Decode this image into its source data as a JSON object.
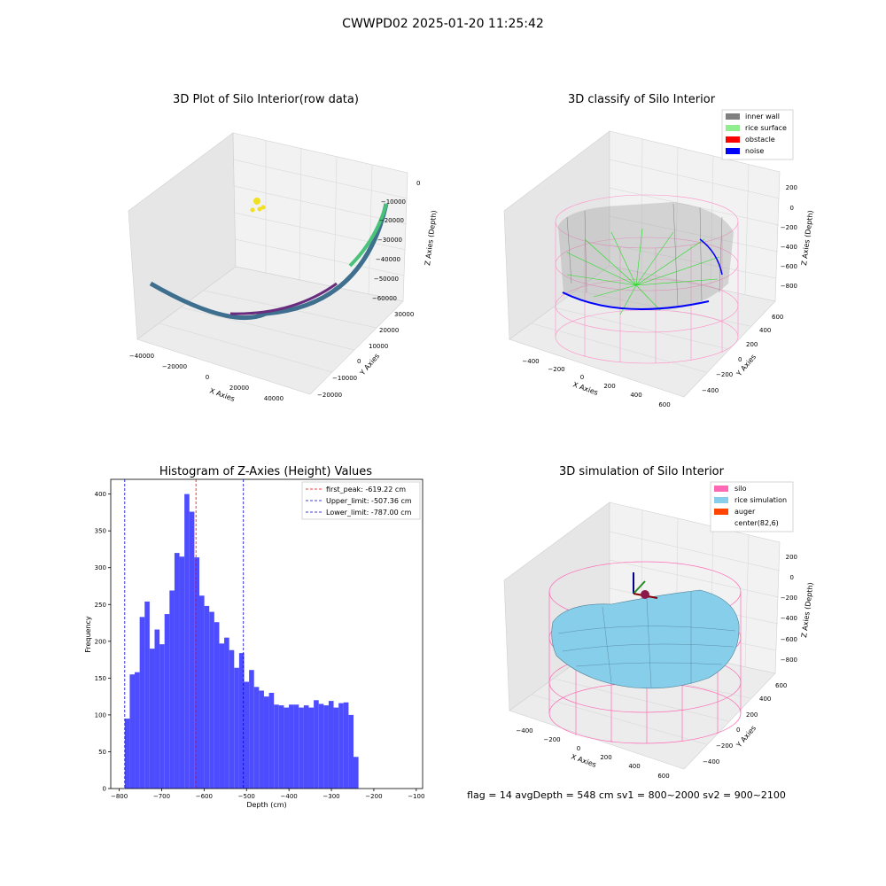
{
  "figure": {
    "title": "CWWPD02 2025-01-20 11:25:42",
    "footer": "flag = 14   avgDepth = 548 cm  sv1 = 800~2000  sv2 = 900~2100"
  },
  "colors": {
    "histogram_bar": "#4d4dff",
    "first_peak_line": "#ff0000",
    "limit_line": "#0000cc",
    "inner_wall": "#808080",
    "rice_surface": "#90ee90",
    "obstacle": "#ff0000",
    "noise": "#0000ff",
    "silo": "#ff69b4",
    "rice_simulation": "#87ceeb",
    "auger": "#ff4500"
  },
  "chart_data": [
    {
      "type": "scatter",
      "title": "3D Plot of Silo Interior(row data)",
      "xlabel": "X Axies",
      "ylabel": "Y Axies",
      "zlabel": "Z Axies (Depth)",
      "x_ticks": [
        "−40000",
        "−20000",
        "0",
        "20000",
        "40000"
      ],
      "y_ticks": [
        "−20000",
        "−10000",
        "0",
        "10000",
        "20000",
        "30000"
      ],
      "z_ticks": [
        "−60000",
        "−50000",
        "−40000",
        "−30000",
        "−20000",
        "−10000",
        "0"
      ]
    },
    {
      "type": "scatter",
      "title": "3D classify of Silo Interior",
      "xlabel": "X Axies",
      "ylabel": "Y Axies",
      "zlabel": "Z Axies (Depth)",
      "x_ticks": [
        "−400",
        "−200",
        "0",
        "200",
        "400",
        "600"
      ],
      "y_ticks": [
        "−400",
        "−200",
        "0",
        "200",
        "400",
        "600"
      ],
      "z_ticks": [
        "−800",
        "−600",
        "−400",
        "−200",
        "0",
        "200"
      ],
      "legend": [
        "inner wall",
        "rice surface",
        "obstacle",
        "noise"
      ],
      "legend_position": "top-right"
    },
    {
      "type": "bar",
      "title": "Histogram of Z-Axies (Height) Values",
      "xlabel": "Depth (cm)",
      "ylabel": "Frequency",
      "xlim": [
        -820,
        -85
      ],
      "ylim": [
        0,
        420
      ],
      "x_ticks": [
        -800,
        -700,
        -600,
        -500,
        -400,
        -300,
        -200,
        -100
      ],
      "x_tick_labels": [
        "−800",
        "−700",
        "−600",
        "−500",
        "−400",
        "−300",
        "−200",
        "−100"
      ],
      "y_ticks": [
        0,
        50,
        100,
        150,
        200,
        250,
        300,
        350,
        400
      ],
      "bin_start": -787,
      "bin_width": 11.72,
      "values": [
        95,
        155,
        158,
        233,
        254,
        190,
        216,
        196,
        237,
        269,
        320,
        315,
        400,
        376,
        314,
        262,
        248,
        240,
        226,
        197,
        205,
        188,
        164,
        184,
        145,
        161,
        138,
        133,
        125,
        130,
        114,
        113,
        110,
        114,
        114,
        110,
        113,
        110,
        120,
        115,
        113,
        119,
        110,
        116,
        117,
        100,
        43
      ],
      "vlines": [
        {
          "label": "first_peak: -619.22 cm",
          "x": -619.22,
          "color": "#ff0000"
        },
        {
          "label": "Upper_limit: -507.36 cm",
          "x": -507.36,
          "color": "#0000cc"
        },
        {
          "label": "Lower_limit: -787.00 cm",
          "x": -787.0,
          "color": "#0000cc"
        }
      ],
      "legend_position": "top-right"
    },
    {
      "type": "scatter",
      "title": "3D simulation of Silo Interior",
      "xlabel": "X Axies",
      "ylabel": "Y Axies",
      "zlabel": "Z Axies (Depth)",
      "x_ticks": [
        "−400",
        "−200",
        "0",
        "200",
        "400",
        "600"
      ],
      "y_ticks": [
        "−400",
        "−200",
        "0",
        "200",
        "400",
        "600"
      ],
      "z_ticks": [
        "−800",
        "−600",
        "−400",
        "−200",
        "0",
        "200"
      ],
      "legend": [
        "silo",
        "rice simulation",
        "auger",
        "center(82,6)"
      ],
      "legend_position": "top-right"
    }
  ]
}
